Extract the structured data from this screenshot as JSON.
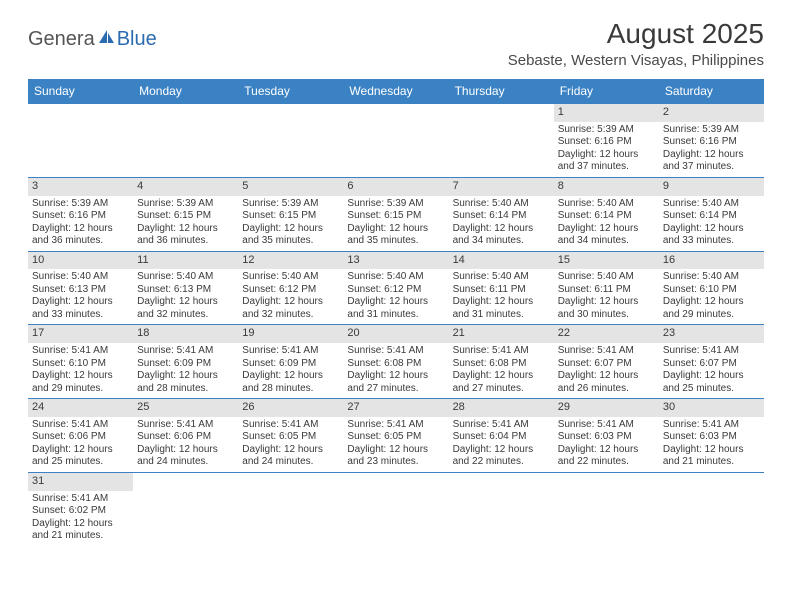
{
  "logo": {
    "part1": "Genera",
    "part2_icon": "sail-icon",
    "part3": "Blue"
  },
  "title": "August 2025",
  "location": "Sebaste, Western Visayas, Philippines",
  "colors": {
    "header_bg": "#3b82c4",
    "header_text": "#ffffff",
    "daynum_bg": "#e4e4e4",
    "text": "#3a3a3a",
    "row_border": "#3b82c4",
    "logo_gray": "#555555",
    "logo_blue": "#2b6cb0",
    "page_bg": "#ffffff"
  },
  "fonts": {
    "title_size_pt": 21,
    "location_size_pt": 11,
    "dayheader_size_pt": 9,
    "daynum_size_pt": 8,
    "body_size_pt": 7.5
  },
  "day_headers": [
    "Sunday",
    "Monday",
    "Tuesday",
    "Wednesday",
    "Thursday",
    "Friday",
    "Saturday"
  ],
  "weeks": [
    [
      {
        "num": "",
        "lines": []
      },
      {
        "num": "",
        "lines": []
      },
      {
        "num": "",
        "lines": []
      },
      {
        "num": "",
        "lines": []
      },
      {
        "num": "",
        "lines": []
      },
      {
        "num": "1",
        "lines": [
          "Sunrise: 5:39 AM",
          "Sunset: 6:16 PM",
          "Daylight: 12 hours and 37 minutes."
        ]
      },
      {
        "num": "2",
        "lines": [
          "Sunrise: 5:39 AM",
          "Sunset: 6:16 PM",
          "Daylight: 12 hours and 37 minutes."
        ]
      }
    ],
    [
      {
        "num": "3",
        "lines": [
          "Sunrise: 5:39 AM",
          "Sunset: 6:16 PM",
          "Daylight: 12 hours and 36 minutes."
        ]
      },
      {
        "num": "4",
        "lines": [
          "Sunrise: 5:39 AM",
          "Sunset: 6:15 PM",
          "Daylight: 12 hours and 36 minutes."
        ]
      },
      {
        "num": "5",
        "lines": [
          "Sunrise: 5:39 AM",
          "Sunset: 6:15 PM",
          "Daylight: 12 hours and 35 minutes."
        ]
      },
      {
        "num": "6",
        "lines": [
          "Sunrise: 5:39 AM",
          "Sunset: 6:15 PM",
          "Daylight: 12 hours and 35 minutes."
        ]
      },
      {
        "num": "7",
        "lines": [
          "Sunrise: 5:40 AM",
          "Sunset: 6:14 PM",
          "Daylight: 12 hours and 34 minutes."
        ]
      },
      {
        "num": "8",
        "lines": [
          "Sunrise: 5:40 AM",
          "Sunset: 6:14 PM",
          "Daylight: 12 hours and 34 minutes."
        ]
      },
      {
        "num": "9",
        "lines": [
          "Sunrise: 5:40 AM",
          "Sunset: 6:14 PM",
          "Daylight: 12 hours and 33 minutes."
        ]
      }
    ],
    [
      {
        "num": "10",
        "lines": [
          "Sunrise: 5:40 AM",
          "Sunset: 6:13 PM",
          "Daylight: 12 hours and 33 minutes."
        ]
      },
      {
        "num": "11",
        "lines": [
          "Sunrise: 5:40 AM",
          "Sunset: 6:13 PM",
          "Daylight: 12 hours and 32 minutes."
        ]
      },
      {
        "num": "12",
        "lines": [
          "Sunrise: 5:40 AM",
          "Sunset: 6:12 PM",
          "Daylight: 12 hours and 32 minutes."
        ]
      },
      {
        "num": "13",
        "lines": [
          "Sunrise: 5:40 AM",
          "Sunset: 6:12 PM",
          "Daylight: 12 hours and 31 minutes."
        ]
      },
      {
        "num": "14",
        "lines": [
          "Sunrise: 5:40 AM",
          "Sunset: 6:11 PM",
          "Daylight: 12 hours and 31 minutes."
        ]
      },
      {
        "num": "15",
        "lines": [
          "Sunrise: 5:40 AM",
          "Sunset: 6:11 PM",
          "Daylight: 12 hours and 30 minutes."
        ]
      },
      {
        "num": "16",
        "lines": [
          "Sunrise: 5:40 AM",
          "Sunset: 6:10 PM",
          "Daylight: 12 hours and 29 minutes."
        ]
      }
    ],
    [
      {
        "num": "17",
        "lines": [
          "Sunrise: 5:41 AM",
          "Sunset: 6:10 PM",
          "Daylight: 12 hours and 29 minutes."
        ]
      },
      {
        "num": "18",
        "lines": [
          "Sunrise: 5:41 AM",
          "Sunset: 6:09 PM",
          "Daylight: 12 hours and 28 minutes."
        ]
      },
      {
        "num": "19",
        "lines": [
          "Sunrise: 5:41 AM",
          "Sunset: 6:09 PM",
          "Daylight: 12 hours and 28 minutes."
        ]
      },
      {
        "num": "20",
        "lines": [
          "Sunrise: 5:41 AM",
          "Sunset: 6:08 PM",
          "Daylight: 12 hours and 27 minutes."
        ]
      },
      {
        "num": "21",
        "lines": [
          "Sunrise: 5:41 AM",
          "Sunset: 6:08 PM",
          "Daylight: 12 hours and 27 minutes."
        ]
      },
      {
        "num": "22",
        "lines": [
          "Sunrise: 5:41 AM",
          "Sunset: 6:07 PM",
          "Daylight: 12 hours and 26 minutes."
        ]
      },
      {
        "num": "23",
        "lines": [
          "Sunrise: 5:41 AM",
          "Sunset: 6:07 PM",
          "Daylight: 12 hours and 25 minutes."
        ]
      }
    ],
    [
      {
        "num": "24",
        "lines": [
          "Sunrise: 5:41 AM",
          "Sunset: 6:06 PM",
          "Daylight: 12 hours and 25 minutes."
        ]
      },
      {
        "num": "25",
        "lines": [
          "Sunrise: 5:41 AM",
          "Sunset: 6:06 PM",
          "Daylight: 12 hours and 24 minutes."
        ]
      },
      {
        "num": "26",
        "lines": [
          "Sunrise: 5:41 AM",
          "Sunset: 6:05 PM",
          "Daylight: 12 hours and 24 minutes."
        ]
      },
      {
        "num": "27",
        "lines": [
          "Sunrise: 5:41 AM",
          "Sunset: 6:05 PM",
          "Daylight: 12 hours and 23 minutes."
        ]
      },
      {
        "num": "28",
        "lines": [
          "Sunrise: 5:41 AM",
          "Sunset: 6:04 PM",
          "Daylight: 12 hours and 22 minutes."
        ]
      },
      {
        "num": "29",
        "lines": [
          "Sunrise: 5:41 AM",
          "Sunset: 6:03 PM",
          "Daylight: 12 hours and 22 minutes."
        ]
      },
      {
        "num": "30",
        "lines": [
          "Sunrise: 5:41 AM",
          "Sunset: 6:03 PM",
          "Daylight: 12 hours and 21 minutes."
        ]
      }
    ],
    [
      {
        "num": "31",
        "lines": [
          "Sunrise: 5:41 AM",
          "Sunset: 6:02 PM",
          "Daylight: 12 hours and 21 minutes."
        ]
      },
      {
        "num": "",
        "lines": []
      },
      {
        "num": "",
        "lines": []
      },
      {
        "num": "",
        "lines": []
      },
      {
        "num": "",
        "lines": []
      },
      {
        "num": "",
        "lines": []
      },
      {
        "num": "",
        "lines": []
      }
    ]
  ]
}
